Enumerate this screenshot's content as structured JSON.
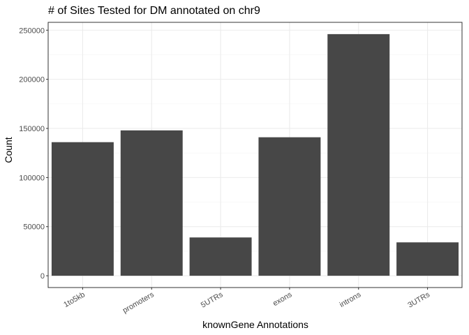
{
  "chart_data": {
    "type": "bar",
    "title": "# of Sites Tested for DM annotated on chr9",
    "xlabel": "knownGene Annotations",
    "ylabel": "Count",
    "categories": [
      "1to5kb",
      "promoters",
      "5UTRs",
      "exons",
      "introns",
      "3UTRs"
    ],
    "values": [
      136000,
      148000,
      39000,
      141000,
      246000,
      34000
    ],
    "ylim": [
      -12000,
      258000
    ],
    "yticks": [
      0,
      50000,
      100000,
      150000,
      200000,
      250000
    ],
    "ytick_labels": [
      "0",
      "50000",
      "100000",
      "150000",
      "200000",
      "250000"
    ],
    "grid": true,
    "bar_color": "#474747",
    "grid_major_color": "#ebebeb",
    "panel_border_color": "#333333"
  }
}
